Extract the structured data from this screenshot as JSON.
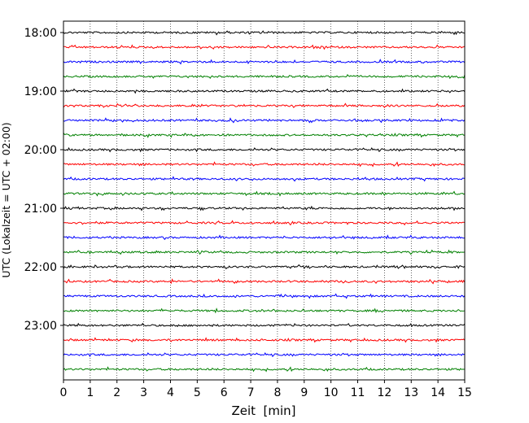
{
  "chart_data": {
    "type": "line",
    "chart_kind": "helicorder (seismogram drum plot)",
    "xlabel": "Zeit  [min]",
    "ylabel": "UTC (Lokalzeit = UTC + 02:00)",
    "xlim": [
      0,
      15
    ],
    "x_ticks": [
      "0",
      "1",
      "2",
      "3",
      "4",
      "5",
      "6",
      "7",
      "8",
      "9",
      "10",
      "11",
      "12",
      "13",
      "14",
      "15"
    ],
    "y_tick_labels": [
      "18:00",
      "19:00",
      "20:00",
      "21:00",
      "22:00",
      "23:00"
    ],
    "grid": "vertical dotted lines at each minute",
    "trace_start_times": [
      "18:00",
      "18:15",
      "18:30",
      "18:45",
      "19:00",
      "19:15",
      "19:30",
      "19:45",
      "20:00",
      "20:15",
      "20:30",
      "20:45",
      "21:00",
      "21:15",
      "21:30",
      "21:45",
      "22:00",
      "22:15",
      "22:30",
      "22:45",
      "23:00",
      "23:15",
      "23:30",
      "23:45"
    ],
    "trace_color_cycle": [
      "#000000",
      "#ff0000",
      "#0000ff",
      "#008000"
    ],
    "trace_minutes_per_line": 15
  }
}
